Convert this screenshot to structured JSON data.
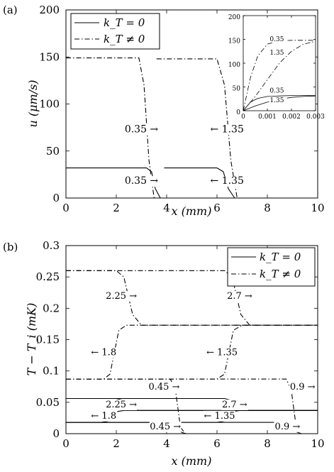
{
  "chart_data": [
    {
      "type": "line",
      "panel": "(a)",
      "xlabel": "x (mm)",
      "ylabel": "u (μm/s)",
      "xlim": [
        0,
        10
      ],
      "ylim": [
        0,
        200
      ],
      "xticks": [
        "0",
        "2",
        "4",
        "6",
        "8",
        "10"
      ],
      "yticks": [
        "0",
        "50",
        "100",
        "150",
        "200"
      ],
      "legend_position": "top-left",
      "legend": [
        "k_T = 0",
        "k_T ≠ 0"
      ],
      "series": [
        {
          "name": "k_T = 0",
          "style": "solid",
          "x": [
            0,
            3.2,
            3.4,
            3.55,
            3.75,
            10
          ],
          "y": [
            32,
            32,
            28,
            10,
            0,
            0
          ]
        },
        {
          "name": "k_T = 0",
          "style": "solid",
          "x": [
            3.9,
            6.0,
            6.25,
            6.45,
            6.7,
            10
          ],
          "y": [
            32,
            32,
            28,
            10,
            0,
            0
          ]
        },
        {
          "name": "k_T ≠ 0",
          "style": "dashdot",
          "x": [
            0,
            2.9,
            3.1,
            3.3,
            3.5,
            10
          ],
          "y": [
            149,
            149,
            120,
            40,
            0,
            0
          ]
        },
        {
          "name": "k_T ≠ 0",
          "style": "dashdot",
          "x": [
            3.6,
            6.0,
            6.3,
            6.55,
            6.8,
            10
          ],
          "y": [
            148,
            148,
            120,
            40,
            0,
            0
          ]
        }
      ],
      "annotations": [
        {
          "text": "0.35 →",
          "x": 3.0,
          "y": 70
        },
        {
          "text": "← 1.35",
          "x": 6.4,
          "y": 70
        },
        {
          "text": "0.35 →",
          "x": 3.0,
          "y": 15
        },
        {
          "text": "← 1.35",
          "x": 6.4,
          "y": 15
        }
      ],
      "inset": {
        "xlim": [
          0,
          0.003
        ],
        "ylim": [
          0,
          200
        ],
        "xticks": [
          "0",
          "0.001",
          "0.002",
          "0.003"
        ],
        "yticks": [
          "0",
          "50",
          "100",
          "150",
          "200"
        ],
        "series": [
          {
            "label": "0.35",
            "style": "dashdot",
            "x": [
              0,
              0.0003,
              0.0006,
              0.001,
              0.0015,
              0.002,
              0.003
            ],
            "y": [
              0,
              70,
              115,
              140,
              147,
              148,
              148
            ]
          },
          {
            "label": "1.35",
            "style": "dashdot",
            "x": [
              0,
              0.0005,
              0.001,
              0.0015,
              0.002,
              0.0025,
              0.003
            ],
            "y": [
              0,
              30,
              65,
              100,
              125,
              140,
              146
            ]
          },
          {
            "label": "0.35",
            "style": "solid",
            "x": [
              0,
              0.0003,
              0.0006,
              0.001,
              0.0015,
              0.002,
              0.003
            ],
            "y": [
              0,
              18,
              26,
              30,
              31,
              32,
              32
            ]
          },
          {
            "label": "1.35",
            "style": "solid",
            "x": [
              0,
              0.0005,
              0.001,
              0.0015,
              0.002,
              0.0025,
              0.003
            ],
            "y": [
              0,
              10,
              18,
              24,
              28,
              30,
              31
            ]
          }
        ]
      }
    },
    {
      "type": "line",
      "panel": "(b)",
      "xlabel": "x (mm)",
      "ylabel": "T − T_i (mK)",
      "xlim": [
        0,
        10
      ],
      "ylim": [
        0,
        0.3
      ],
      "xticks": [
        "0",
        "2",
        "4",
        "6",
        "8",
        "10"
      ],
      "yticks": [
        "0",
        "0.05",
        "0.1",
        "0.15",
        "0.2",
        "0.25",
        "0.3"
      ],
      "legend_position": "top-right",
      "legend": [
        "k_T = 0",
        "k_T ≠ 0"
      ],
      "series": [
        {
          "name": "k_T ≠ 0",
          "style": "dashdot",
          "x": [
            0,
            2.0,
            2.3,
            2.65,
            3.0,
            10
          ],
          "y": [
            0.26,
            0.26,
            0.25,
            0.19,
            0.173,
            0.173
          ]
        },
        {
          "name": "k_T ≠ 0",
          "style": "dashdot",
          "x": [
            0,
            6.3,
            6.6,
            6.95,
            7.3,
            10
          ],
          "y": [
            0.26,
            0.26,
            0.25,
            0.19,
            0.173,
            0.173
          ]
        },
        {
          "name": "k_T ≠ 0",
          "style": "dashdot",
          "x": [
            0,
            1.5,
            1.75,
            2.1,
            2.4,
            10
          ],
          "y": [
            0.087,
            0.087,
            0.095,
            0.165,
            0.173,
            0.173
          ]
        },
        {
          "name": "k_T ≠ 0",
          "style": "dashdot",
          "x": [
            0,
            6.0,
            6.3,
            6.65,
            7.0,
            10
          ],
          "y": [
            0.087,
            0.087,
            0.095,
            0.165,
            0.173,
            0.173
          ]
        },
        {
          "name": "k_T ≠ 0",
          "style": "dashdot",
          "x": [
            0,
            4.15,
            4.35,
            4.55,
            4.75,
            10
          ],
          "y": [
            0.087,
            0.087,
            0.07,
            0.01,
            0,
            0
          ]
        },
        {
          "name": "k_T ≠ 0",
          "style": "dashdot",
          "x": [
            0,
            8.75,
            8.95,
            9.15,
            9.35,
            10
          ],
          "y": [
            0.087,
            0.087,
            0.07,
            0.01,
            0,
            0
          ]
        },
        {
          "name": "k_T = 0",
          "style": "solid",
          "x": [
            0,
            2.0,
            2.3,
            2.6,
            2.9,
            10
          ],
          "y": [
            0.056,
            0.056,
            0.053,
            0.04,
            0.037,
            0.037
          ]
        },
        {
          "name": "k_T = 0",
          "style": "solid",
          "x": [
            0,
            6.3,
            6.6,
            6.9,
            7.2,
            10
          ],
          "y": [
            0.056,
            0.056,
            0.053,
            0.04,
            0.037,
            0.037
          ]
        },
        {
          "name": "k_T = 0",
          "style": "solid",
          "x": [
            0,
            1.4,
            1.7,
            2.0,
            2.3,
            10
          ],
          "y": [
            0.018,
            0.018,
            0.02,
            0.035,
            0.037,
            0.037
          ]
        },
        {
          "name": "k_T = 0",
          "style": "solid",
          "x": [
            0,
            6.0,
            6.3,
            6.6,
            6.9,
            10
          ],
          "y": [
            0.018,
            0.018,
            0.02,
            0.035,
            0.037,
            0.037
          ]
        },
        {
          "name": "k_T = 0",
          "style": "solid",
          "x": [
            0,
            4.15,
            4.35,
            4.55,
            4.75,
            10
          ],
          "y": [
            0.018,
            0.018,
            0.014,
            0.003,
            0,
            0
          ]
        },
        {
          "name": "k_T = 0",
          "style": "solid",
          "x": [
            0,
            8.75,
            8.95,
            9.15,
            9.35,
            10
          ],
          "y": [
            0.018,
            0.018,
            0.014,
            0.003,
            0,
            0
          ]
        }
      ],
      "annotations": [
        {
          "text": "2.25 →",
          "x": 2.2,
          "y": 0.215
        },
        {
          "text": "2.7 →",
          "x": 6.9,
          "y": 0.215
        },
        {
          "text": "← 1.8",
          "x": 1.5,
          "y": 0.125
        },
        {
          "text": "← 1.35",
          "x": 6.2,
          "y": 0.125
        },
        {
          "text": "0.45 →",
          "x": 3.9,
          "y": 0.07
        },
        {
          "text": "0.9 →",
          "x": 9.4,
          "y": 0.07
        },
        {
          "text": "2.25 →",
          "x": 2.2,
          "y": 0.042
        },
        {
          "text": "2.7 →",
          "x": 6.7,
          "y": 0.042
        },
        {
          "text": "← 1.8",
          "x": 1.5,
          "y": 0.024
        },
        {
          "text": "← 1.35",
          "x": 6.1,
          "y": 0.024
        },
        {
          "text": "0.45 →",
          "x": 3.95,
          "y": 0.007
        },
        {
          "text": "0.9 →",
          "x": 8.8,
          "y": 0.007
        }
      ]
    }
  ]
}
